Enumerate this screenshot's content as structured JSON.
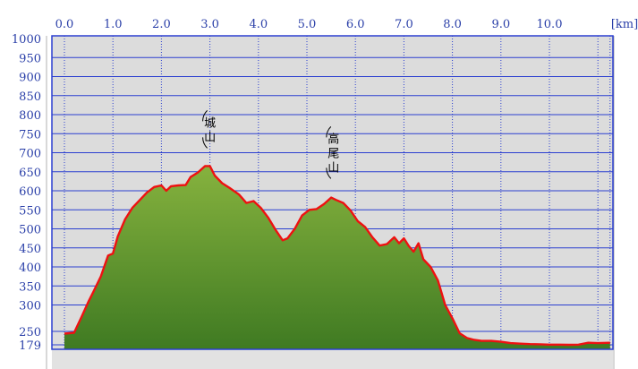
{
  "chart_data": {
    "type": "area",
    "title": "",
    "xlabel": "",
    "ylabel": "",
    "x_unit": "[km]",
    "x_ticks": [
      "0.0",
      "1.0",
      "2.0",
      "3.0",
      "4.0",
      "5.0",
      "6.0",
      "7.0",
      "8.0",
      "9.0",
      "10.0"
    ],
    "y_ticks": [
      "1000",
      "950",
      "900",
      "850",
      "800",
      "750",
      "700",
      "650",
      "600",
      "550",
      "500",
      "450",
      "400",
      "350",
      "300",
      "250",
      "179"
    ],
    "xlim": [
      0,
      11.25
    ],
    "ylim": [
      179,
      1000
    ],
    "grid": true,
    "colors": {
      "fill_top": "#86b23e",
      "fill_bottom": "#3f7a22",
      "line": "#ee1111",
      "plot_bg": "#dcdcdc",
      "grid": "#2b3fd0",
      "tick_text": "#2a3fa8"
    },
    "annotations": [
      {
        "text": "城山",
        "x": 3.0,
        "y": 665
      },
      {
        "text": "高尾山",
        "x": 5.55,
        "y": 585
      }
    ],
    "series": [
      {
        "x": [
          0.0,
          0.2,
          0.35,
          0.5,
          0.6,
          0.75,
          0.9,
          1.0,
          1.1,
          1.25,
          1.4,
          1.55,
          1.7,
          1.85,
          2.0,
          2.1,
          2.2,
          2.35,
          2.5,
          2.6,
          2.75,
          2.9,
          3.0,
          3.1,
          3.25,
          3.4,
          3.6,
          3.75,
          3.9,
          4.05,
          4.2,
          4.35,
          4.5,
          4.6,
          4.75,
          4.9,
          5.05,
          5.2,
          5.35,
          5.5,
          5.6,
          5.75,
          5.9,
          6.05,
          6.2,
          6.35,
          6.5,
          6.65,
          6.8,
          6.9,
          7.0,
          7.1,
          7.2,
          7.3,
          7.4,
          7.55,
          7.7,
          7.85,
          8.0,
          8.15,
          8.3,
          8.45,
          8.6,
          8.8,
          9.0,
          9.2,
          9.4,
          9.6,
          9.8,
          10.0,
          10.2,
          10.4,
          10.6,
          10.8,
          11.0,
          11.25
        ],
        "values": [
          238,
          243,
          268,
          310,
          335,
          375,
          430,
          435,
          480,
          525,
          555,
          575,
          595,
          610,
          614,
          600,
          612,
          614,
          615,
          636,
          648,
          665,
          665,
          640,
          620,
          608,
          590,
          568,
          573,
          555,
          530,
          498,
          470,
          475,
          500,
          535,
          550,
          552,
          565,
          582,
          576,
          568,
          548,
          520,
          505,
          478,
          456,
          460,
          478,
          462,
          475,
          455,
          440,
          462,
          420,
          400,
          365,
          300,
          265,
          240,
          215,
          205,
          200,
          200,
          195,
          188,
          185,
          183,
          182,
          180,
          180,
          179,
          180,
          190,
          188,
          190
        ]
      }
    ]
  }
}
